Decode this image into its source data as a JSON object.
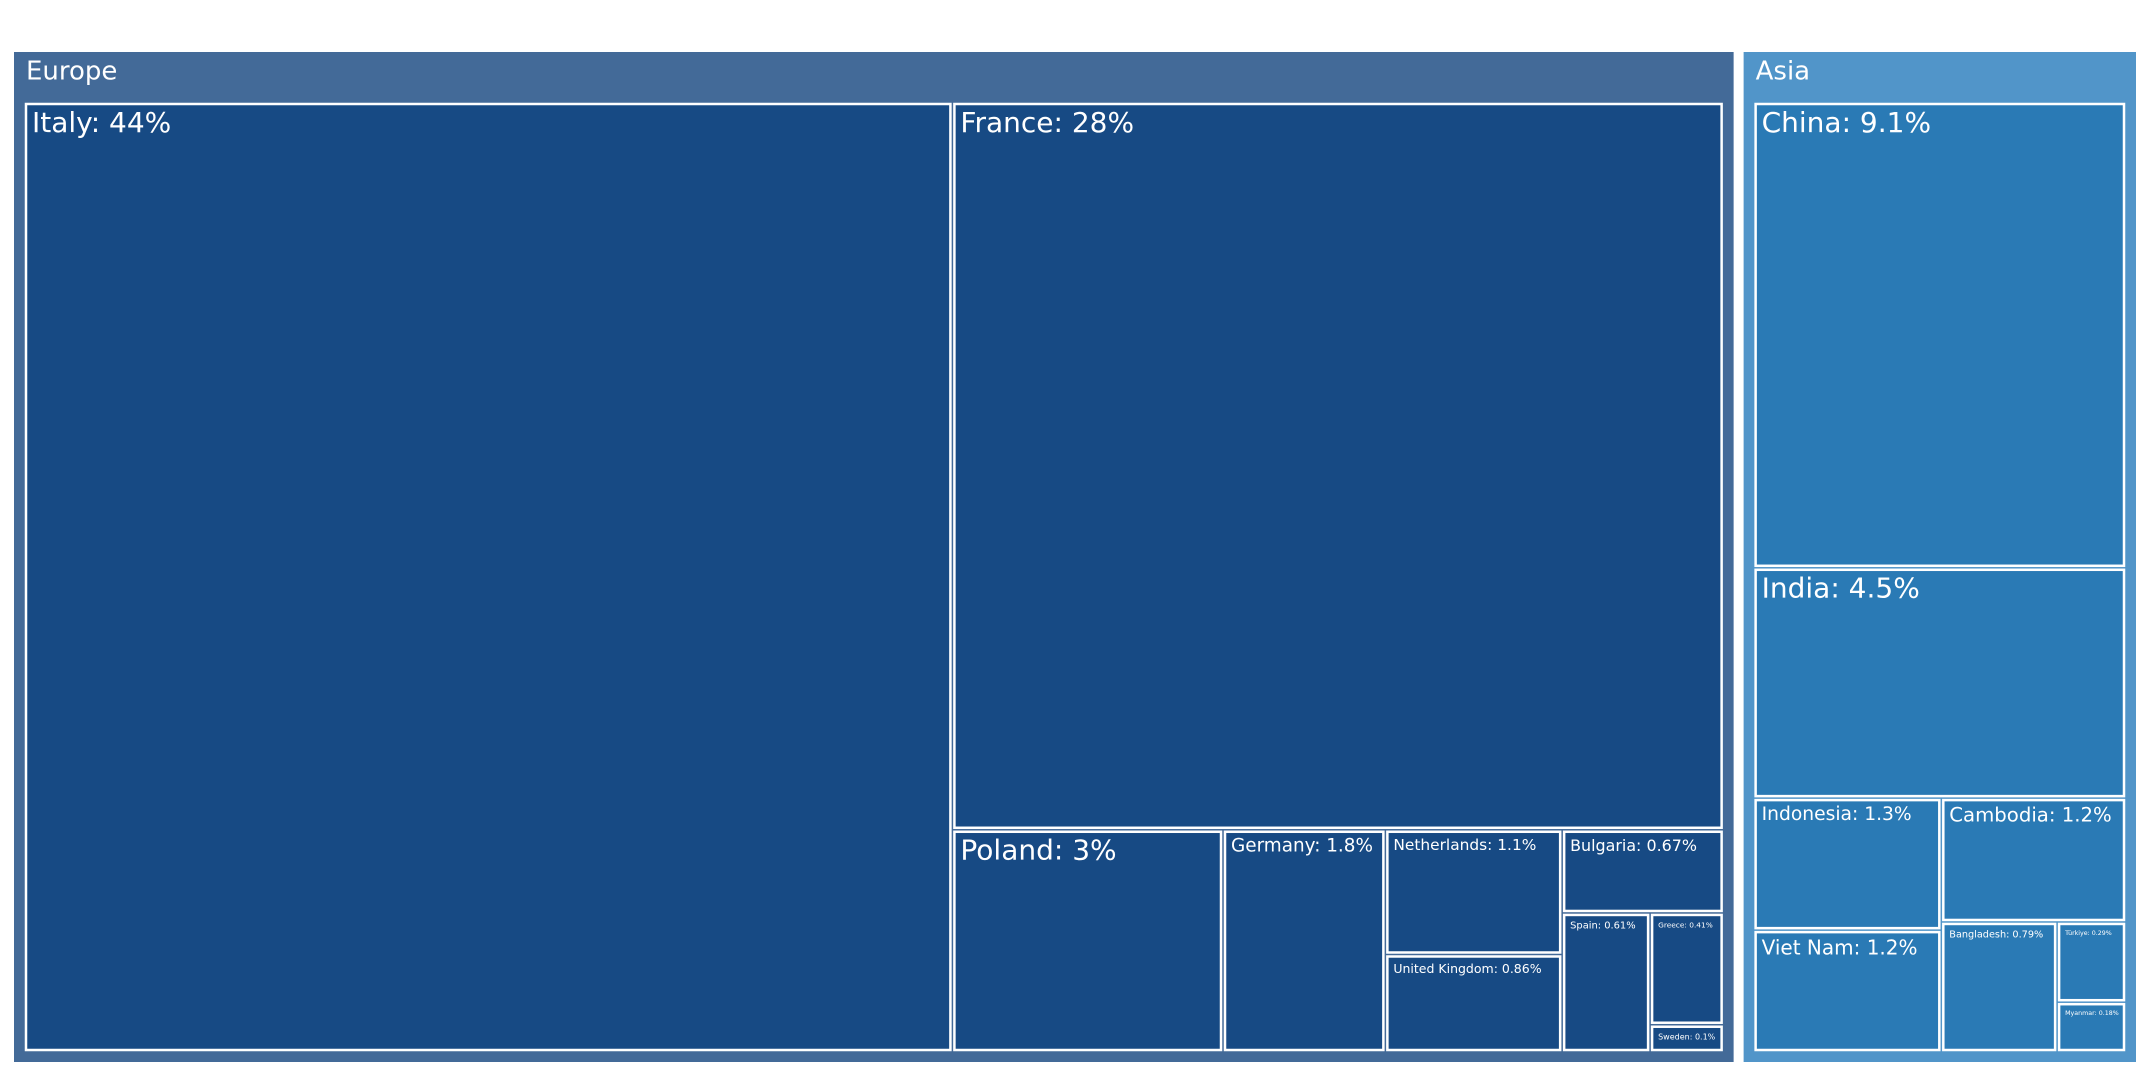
{
  "chart_data": {
    "type": "treemap",
    "groups": [
      {
        "name": "Europe",
        "header_color": "#436a98",
        "color": "#174a84",
        "leaves": [
          {
            "label": "Italy: 44%",
            "value": 44
          },
          {
            "label": "France: 28%",
            "value": 28
          },
          {
            "label": "Poland: 3%",
            "value": 3
          },
          {
            "label": "Germany: 1.8%",
            "value": 1.8
          },
          {
            "label": "Netherlands: 1.1%",
            "value": 1.1
          },
          {
            "label": "United Kingdom: 0.86%",
            "value": 0.86
          },
          {
            "label": "Bulgaria: 0.67%",
            "value": 0.67
          },
          {
            "label": "Spain: 0.61%",
            "value": 0.61
          },
          {
            "label": "Greece: 0.41%",
            "value": 0.41
          },
          {
            "label": "Sweden: 0.1%",
            "value": 0.1
          }
        ]
      },
      {
        "name": "Asia",
        "header_color": "#5195c9",
        "color": "#2a7ab5",
        "leaves": [
          {
            "label": "China: 9.1%",
            "value": 9.1
          },
          {
            "label": "India: 4.5%",
            "value": 4.5
          },
          {
            "label": "Indonesia: 1.3%",
            "value": 1.3
          },
          {
            "label": "Viet Nam: 1.2%",
            "value": 1.2
          },
          {
            "label": "Cambodia: 1.2%",
            "value": 1.2
          },
          {
            "label": "Bangladesh: 0.79%",
            "value": 0.79
          },
          {
            "label": "Türkiye: 0.29%",
            "value": 0.29
          },
          {
            "label": "Myanmar: 0.18%",
            "value": 0.18
          }
        ]
      }
    ]
  }
}
